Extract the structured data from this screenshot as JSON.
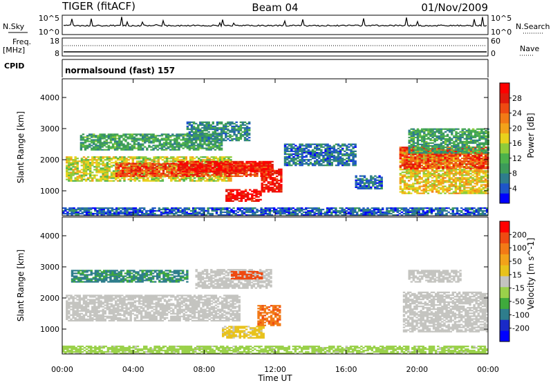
{
  "header": {
    "station": "TIGER (fitACF)",
    "beam": "Beam 04",
    "date": "01/Nov/2009"
  },
  "status": {
    "nsky_label": "N.Sky",
    "nsky_ticks": [
      "10^5",
      "10^0"
    ],
    "nsearch_label": "N.Search",
    "freq_label_1": "Freq.",
    "freq_label_2": "[MHz]",
    "freq_ticks": [
      "18",
      "8"
    ],
    "nave_label": "Nave",
    "nave_ticks": [
      "60",
      "0"
    ],
    "cpid_label": "CPID",
    "cpid_text": "normalsound (fast) 157"
  },
  "colors": {
    "power_scale": [
      "#0000ff",
      "#1e55c8",
      "#2e7d8c",
      "#3c9a5a",
      "#4db24b",
      "#8fcc3a",
      "#e8d21c",
      "#f2a21a",
      "#f27a16",
      "#ee4a12",
      "#e01a0c",
      "#ff0000"
    ],
    "velocity_scale": [
      "#0000ff",
      "#1a2ac8",
      "#2e7d8c",
      "#3faa3c",
      "#9ad14a",
      "#c4c4c0",
      "#e8c21c",
      "#f2a21a",
      "#f27a16",
      "#ee4a12",
      "#ff0000"
    ],
    "ground_scatter": "#c4c4c0"
  },
  "chart_data": [
    {
      "type": "heatmap",
      "panel": "power",
      "ylabel": "Slant Range [km]",
      "yticks": [
        "1000",
        "2000",
        "3000",
        "4000"
      ],
      "ylim": [
        200,
        4600
      ],
      "xlim": [
        0,
        24
      ],
      "colorbar_label": "Power [dB]",
      "colorbar_ticks": [
        "4",
        "8",
        "12",
        "16",
        "20",
        "24",
        "28"
      ],
      "colorbar_range": [
        0,
        32
      ],
      "regions": [
        {
          "t0": 0.2,
          "t1": 9.5,
          "r0": 1300,
          "r1": 2100,
          "value": 16
        },
        {
          "t0": 3.0,
          "t1": 11.5,
          "r0": 1450,
          "r1": 1900,
          "value": 26
        },
        {
          "t0": 6.5,
          "t1": 11.8,
          "r0": 1600,
          "r1": 1950,
          "value": 29
        },
        {
          "t0": 9.2,
          "t1": 11.2,
          "r0": 650,
          "r1": 1050,
          "value": 30
        },
        {
          "t0": 11.2,
          "t1": 12.3,
          "r0": 950,
          "r1": 1700,
          "value": 29
        },
        {
          "t0": 1.0,
          "t1": 9.0,
          "r0": 2300,
          "r1": 2800,
          "value": 10
        },
        {
          "t0": 7.0,
          "t1": 10.5,
          "r0": 2600,
          "r1": 3200,
          "value": 8
        },
        {
          "t0": 12.5,
          "t1": 16.5,
          "r0": 1800,
          "r1": 2500,
          "value": 6
        },
        {
          "t0": 16.5,
          "t1": 18.0,
          "r0": 1050,
          "r1": 1500,
          "value": 6
        },
        {
          "t0": 19.0,
          "t1": 24.0,
          "r0": 900,
          "r1": 2300,
          "value": 18
        },
        {
          "t0": 19.0,
          "t1": 24.0,
          "r0": 1700,
          "r1": 2400,
          "value": 26
        },
        {
          "t0": 19.5,
          "t1": 24.0,
          "r0": 2200,
          "r1": 3000,
          "value": 10
        },
        {
          "t0": 0.0,
          "t1": 24.0,
          "r0": 200,
          "r1": 450,
          "value": 5
        }
      ]
    },
    {
      "type": "heatmap",
      "panel": "velocity",
      "ylabel": "Slant Range [km]",
      "yticks": [
        "1000",
        "2000",
        "3000",
        "4000"
      ],
      "ylim": [
        200,
        4600
      ],
      "xlim": [
        0,
        24
      ],
      "xlabel": "Time UT",
      "xticks": [
        "00:00",
        "04:00",
        "08:00",
        "12:00",
        "16:00",
        "20:00",
        "00:00"
      ],
      "colorbar_label": "Velocity [m s^-1]",
      "colorbar_ticks": [
        "200",
        "100",
        "50",
        "15",
        "-15",
        "-50",
        "-100",
        "-200"
      ],
      "colorbar_range": [
        -250,
        250
      ],
      "regions": [
        {
          "t0": 0.2,
          "t1": 10.0,
          "r0": 1250,
          "r1": 2100,
          "value": 0,
          "ground_scatter": true
        },
        {
          "t0": 9.0,
          "t1": 11.3,
          "r0": 700,
          "r1": 1100,
          "value": 40
        },
        {
          "t0": 11.0,
          "t1": 12.3,
          "r0": 1100,
          "r1": 1750,
          "value": 150
        },
        {
          "t0": 0.5,
          "t1": 7.0,
          "r0": 2500,
          "r1": 2900,
          "value": -120
        },
        {
          "t0": 7.5,
          "t1": 11.8,
          "r0": 2300,
          "r1": 2900,
          "value": 0,
          "ground_scatter": true
        },
        {
          "t0": 9.5,
          "t1": 11.2,
          "r0": 2600,
          "r1": 2850,
          "value": 180
        },
        {
          "t0": 19.2,
          "t1": 24.0,
          "r0": 900,
          "r1": 2200,
          "value": 0,
          "ground_scatter": true
        },
        {
          "t0": 19.5,
          "t1": 22.5,
          "r0": 2500,
          "r1": 2900,
          "value": 0,
          "ground_scatter": true
        },
        {
          "t0": 0.0,
          "t1": 24.0,
          "r0": 200,
          "r1": 450,
          "value": -40
        }
      ]
    }
  ]
}
